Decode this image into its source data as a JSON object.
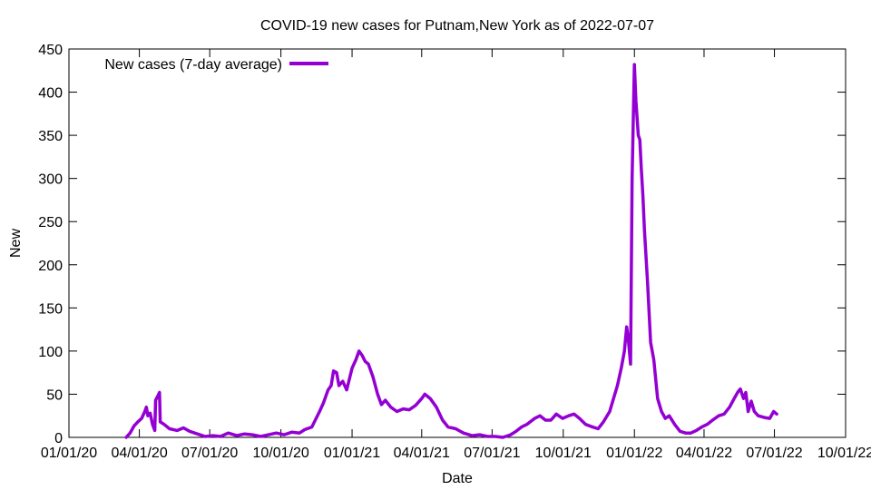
{
  "chart_data": {
    "type": "line",
    "title": "COVID-19 new cases for Putnam,New York as of 2022-07-07",
    "xlabel": "Date",
    "ylabel": "New",
    "xlim": [
      "2020-01-01",
      "2022-10-01"
    ],
    "ylim": [
      0,
      450
    ],
    "grid": false,
    "legend_position": "top-left",
    "x_tick_labels": [
      "01/01/20",
      "04/01/20",
      "07/01/20",
      "10/01/20",
      "01/01/21",
      "04/01/21",
      "07/01/21",
      "10/01/21",
      "01/01/22",
      "04/01/22",
      "07/01/22",
      "10/01/22"
    ],
    "y_tick_labels": [
      "0",
      "50",
      "100",
      "150",
      "200",
      "250",
      "300",
      "350",
      "400",
      "450"
    ],
    "series": [
      {
        "name": "New cases (7-day average)",
        "color": "#9400d3",
        "points": [
          [
            "2020-03-15",
            0
          ],
          [
            "2020-03-20",
            5
          ],
          [
            "2020-03-25",
            13
          ],
          [
            "2020-03-30",
            18
          ],
          [
            "2020-04-04",
            22
          ],
          [
            "2020-04-08",
            30
          ],
          [
            "2020-04-10",
            35
          ],
          [
            "2020-04-12",
            25
          ],
          [
            "2020-04-15",
            28
          ],
          [
            "2020-04-18",
            15
          ],
          [
            "2020-04-21",
            8
          ],
          [
            "2020-04-22",
            43
          ],
          [
            "2020-04-25",
            48
          ],
          [
            "2020-04-27",
            52
          ],
          [
            "2020-04-28",
            18
          ],
          [
            "2020-05-03",
            15
          ],
          [
            "2020-05-10",
            10
          ],
          [
            "2020-05-20",
            8
          ],
          [
            "2020-05-28",
            11
          ],
          [
            "2020-06-05",
            7
          ],
          [
            "2020-06-15",
            4
          ],
          [
            "2020-06-25",
            1
          ],
          [
            "2020-07-05",
            2
          ],
          [
            "2020-07-15",
            1
          ],
          [
            "2020-07-25",
            5
          ],
          [
            "2020-08-05",
            2
          ],
          [
            "2020-08-15",
            4
          ],
          [
            "2020-08-25",
            3
          ],
          [
            "2020-09-05",
            1
          ],
          [
            "2020-09-15",
            3
          ],
          [
            "2020-09-25",
            5
          ],
          [
            "2020-10-05",
            3
          ],
          [
            "2020-10-15",
            6
          ],
          [
            "2020-10-25",
            5
          ],
          [
            "2020-11-01",
            9
          ],
          [
            "2020-11-10",
            12
          ],
          [
            "2020-11-20",
            30
          ],
          [
            "2020-11-25",
            40
          ],
          [
            "2020-12-01",
            55
          ],
          [
            "2020-12-05",
            60
          ],
          [
            "2020-12-08",
            77
          ],
          [
            "2020-12-12",
            75
          ],
          [
            "2020-12-15",
            60
          ],
          [
            "2020-12-20",
            65
          ],
          [
            "2020-12-25",
            55
          ],
          [
            "2021-01-01",
            80
          ],
          [
            "2021-01-06",
            90
          ],
          [
            "2021-01-10",
            100
          ],
          [
            "2021-01-14",
            95
          ],
          [
            "2021-01-18",
            88
          ],
          [
            "2021-01-22",
            85
          ],
          [
            "2021-01-28",
            70
          ],
          [
            "2021-02-03",
            50
          ],
          [
            "2021-02-08",
            38
          ],
          [
            "2021-02-13",
            43
          ],
          [
            "2021-02-20",
            35
          ],
          [
            "2021-02-28",
            30
          ],
          [
            "2021-03-08",
            33
          ],
          [
            "2021-03-16",
            32
          ],
          [
            "2021-03-24",
            37
          ],
          [
            "2021-04-01",
            45
          ],
          [
            "2021-04-05",
            50
          ],
          [
            "2021-04-12",
            45
          ],
          [
            "2021-04-20",
            35
          ],
          [
            "2021-04-28",
            20
          ],
          [
            "2021-05-05",
            12
          ],
          [
            "2021-05-15",
            10
          ],
          [
            "2021-05-25",
            5
          ],
          [
            "2021-06-05",
            2
          ],
          [
            "2021-06-15",
            3
          ],
          [
            "2021-06-25",
            1
          ],
          [
            "2021-07-05",
            1
          ],
          [
            "2021-07-15",
            0
          ],
          [
            "2021-07-25",
            3
          ],
          [
            "2021-08-01",
            7
          ],
          [
            "2021-08-08",
            12
          ],
          [
            "2021-08-15",
            15
          ],
          [
            "2021-08-25",
            22
          ],
          [
            "2021-09-01",
            25
          ],
          [
            "2021-09-08",
            20
          ],
          [
            "2021-09-15",
            20
          ],
          [
            "2021-09-22",
            27
          ],
          [
            "2021-09-30",
            22
          ],
          [
            "2021-10-08",
            25
          ],
          [
            "2021-10-15",
            27
          ],
          [
            "2021-10-22",
            22
          ],
          [
            "2021-10-30",
            15
          ],
          [
            "2021-11-08",
            12
          ],
          [
            "2021-11-15",
            10
          ],
          [
            "2021-11-22",
            18
          ],
          [
            "2021-11-30",
            30
          ],
          [
            "2021-12-05",
            45
          ],
          [
            "2021-12-10",
            60
          ],
          [
            "2021-12-15",
            80
          ],
          [
            "2021-12-19",
            100
          ],
          [
            "2021-12-22",
            128
          ],
          [
            "2021-12-24",
            115
          ],
          [
            "2021-12-27",
            85
          ],
          [
            "2021-12-29",
            300
          ],
          [
            "2022-01-01",
            432
          ],
          [
            "2022-01-03",
            390
          ],
          [
            "2022-01-06",
            350
          ],
          [
            "2022-01-08",
            345
          ],
          [
            "2022-01-10",
            310
          ],
          [
            "2022-01-12",
            280
          ],
          [
            "2022-01-14",
            240
          ],
          [
            "2022-01-18",
            180
          ],
          [
            "2022-01-22",
            110
          ],
          [
            "2022-01-26",
            90
          ],
          [
            "2022-01-31",
            45
          ],
          [
            "2022-02-05",
            30
          ],
          [
            "2022-02-10",
            22
          ],
          [
            "2022-02-15",
            25
          ],
          [
            "2022-02-22",
            15
          ],
          [
            "2022-03-01",
            7
          ],
          [
            "2022-03-08",
            5
          ],
          [
            "2022-03-15",
            5
          ],
          [
            "2022-03-22",
            8
          ],
          [
            "2022-03-29",
            12
          ],
          [
            "2022-04-05",
            15
          ],
          [
            "2022-04-12",
            20
          ],
          [
            "2022-04-20",
            25
          ],
          [
            "2022-04-27",
            27
          ],
          [
            "2022-05-04",
            35
          ],
          [
            "2022-05-10",
            45
          ],
          [
            "2022-05-15",
            53
          ],
          [
            "2022-05-18",
            56
          ],
          [
            "2022-05-22",
            45
          ],
          [
            "2022-05-25",
            52
          ],
          [
            "2022-05-28",
            30
          ],
          [
            "2022-06-01",
            42
          ],
          [
            "2022-06-05",
            30
          ],
          [
            "2022-06-10",
            25
          ],
          [
            "2022-06-18",
            23
          ],
          [
            "2022-06-25",
            22
          ],
          [
            "2022-06-30",
            30
          ],
          [
            "2022-07-04",
            27
          ]
        ]
      }
    ]
  }
}
